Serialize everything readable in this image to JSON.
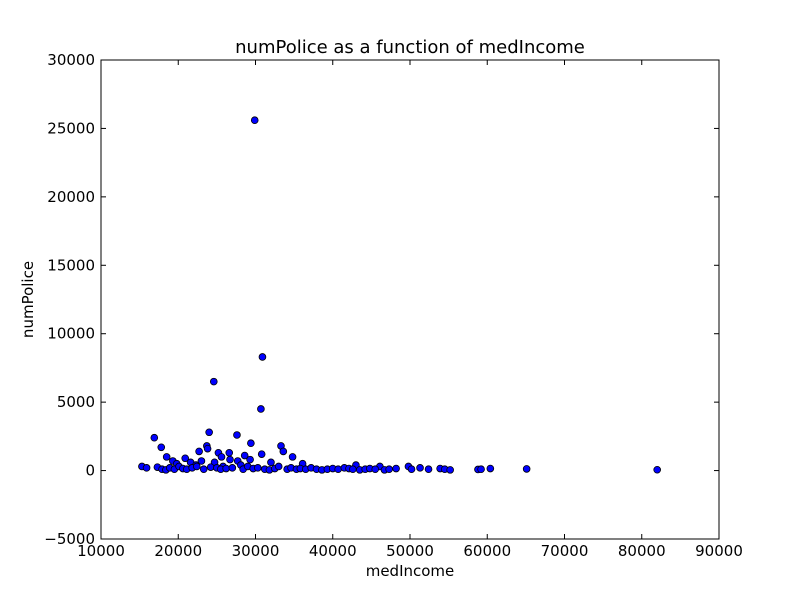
{
  "chart_data": {
    "type": "scatter",
    "title": "numPolice as a function of medIncome",
    "xlabel": "medIncome",
    "ylabel": "numPolice",
    "xlim": [
      10000,
      90000
    ],
    "ylim": [
      -5000,
      30000
    ],
    "xticks": [
      10000,
      20000,
      30000,
      40000,
      50000,
      60000,
      70000,
      80000,
      90000
    ],
    "yticks": [
      -5000,
      0,
      5000,
      10000,
      15000,
      20000,
      25000,
      30000
    ],
    "grid": false,
    "marker_color": "#0000ff",
    "marker_edge": "#000000",
    "series": [
      {
        "x": [
          29900,
          30900,
          24600,
          30700,
          24000,
          27600,
          16900,
          29400,
          33300,
          23700,
          17800,
          23800,
          33600,
          22700,
          30800,
          18500,
          25200,
          28600,
          26600,
          25600,
          34800,
          20900,
          29300,
          26700,
          19300,
          27700,
          21600,
          32000,
          36100,
          24700,
          23000,
          22300,
          19800,
          28100,
          25800,
          43000,
          46100,
          15300,
          15900,
          17300,
          17900,
          18400,
          18900,
          19500,
          20100,
          20600,
          21100,
          21800,
          22400,
          23300,
          24200,
          25000,
          25500,
          26200,
          27000,
          28400,
          29000,
          29700,
          30300,
          31200,
          31800,
          32500,
          33000,
          34100,
          34600,
          35300,
          35800,
          36500,
          37200,
          37900,
          38600,
          39300,
          40000,
          40700,
          41500,
          42100,
          42600,
          43500,
          44200,
          44800,
          45500,
          46700,
          47300,
          48200,
          49800,
          50200,
          51300,
          52400,
          53900,
          54500,
          55200,
          58800,
          59200,
          60400,
          65100,
          82000
        ],
        "y": [
          25600,
          8300,
          6500,
          4500,
          2800,
          2600,
          2400,
          2000,
          1800,
          1800,
          1700,
          1600,
          1400,
          1400,
          1200,
          1000,
          1300,
          1100,
          1300,
          1000,
          1000,
          900,
          800,
          800,
          700,
          700,
          600,
          600,
          500,
          600,
          700,
          400,
          500,
          400,
          300,
          400,
          300,
          300,
          200,
          250,
          100,
          50,
          200,
          100,
          300,
          150,
          100,
          200,
          300,
          100,
          250,
          200,
          100,
          150,
          200,
          100,
          300,
          150,
          200,
          100,
          50,
          150,
          300,
          100,
          200,
          100,
          150,
          100,
          200,
          100,
          50,
          100,
          150,
          100,
          200,
          150,
          100,
          50,
          100,
          150,
          100,
          50,
          100,
          150,
          300,
          100,
          200,
          100,
          150,
          100,
          50,
          80,
          100,
          150,
          120,
          60
        ]
      }
    ]
  }
}
